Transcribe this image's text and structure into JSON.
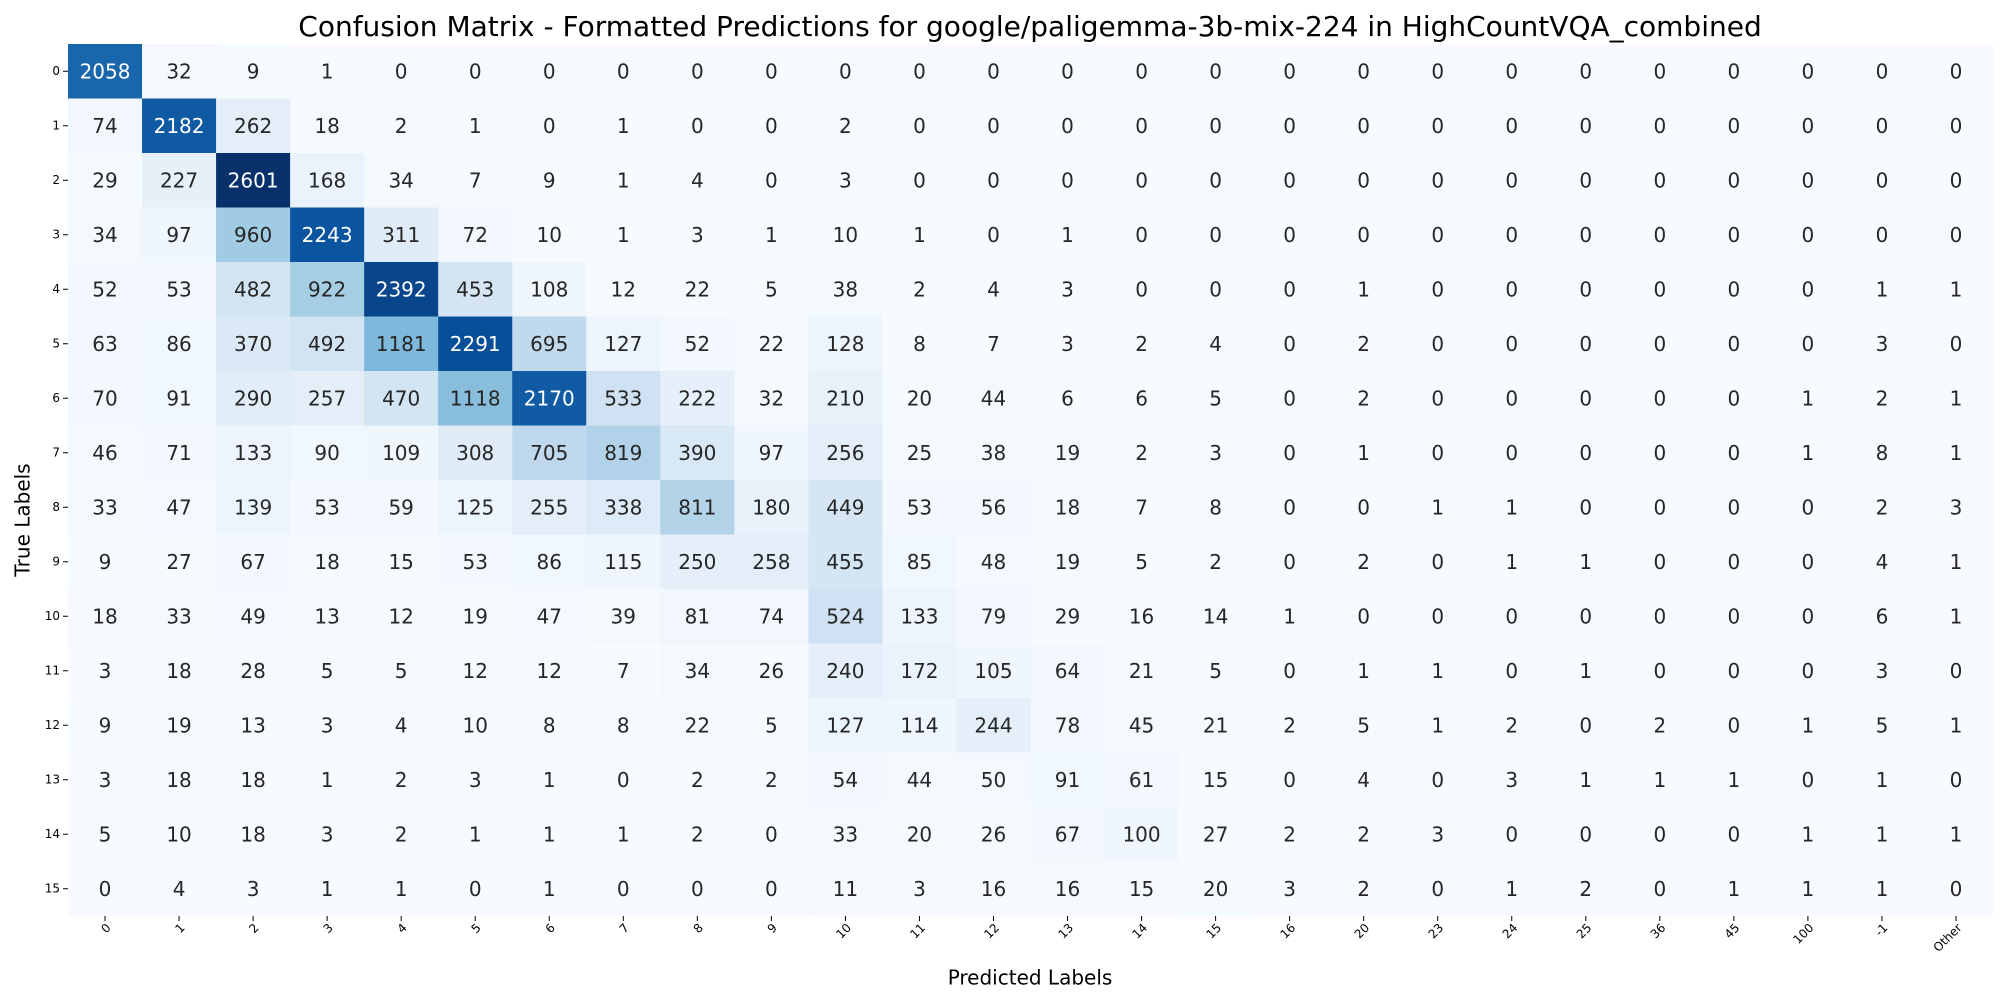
{
  "chart_data": {
    "type": "heatmap",
    "title": "Confusion Matrix - Formatted Predictions for google/paligemma-3b-mix-224 in HighCountVQA_combined",
    "xlabel": "Predicted Labels",
    "ylabel": "True Labels",
    "colormap": "Blues",
    "color_min": 0,
    "color_max": 2601,
    "colorbar": false,
    "x_categories": [
      "0",
      "1",
      "2",
      "3",
      "4",
      "5",
      "6",
      "7",
      "8",
      "9",
      "10",
      "11",
      "12",
      "13",
      "14",
      "15",
      "16",
      "20",
      "23",
      "24",
      "25",
      "36",
      "45",
      "100",
      "-1",
      "Other"
    ],
    "y_categories": [
      "0",
      "1",
      "2",
      "3",
      "4",
      "5",
      "6",
      "7",
      "8",
      "9",
      "10",
      "11",
      "12",
      "13",
      "14",
      "15"
    ],
    "values": [
      [
        2058,
        32,
        9,
        1,
        0,
        0,
        0,
        0,
        0,
        0,
        0,
        0,
        0,
        0,
        0,
        0,
        0,
        0,
        0,
        0,
        0,
        0,
        0,
        0,
        0,
        0
      ],
      [
        74,
        2182,
        262,
        18,
        2,
        1,
        0,
        1,
        0,
        0,
        2,
        0,
        0,
        0,
        0,
        0,
        0,
        0,
        0,
        0,
        0,
        0,
        0,
        0,
        0,
        0
      ],
      [
        29,
        227,
        2601,
        168,
        34,
        7,
        9,
        1,
        4,
        0,
        3,
        0,
        0,
        0,
        0,
        0,
        0,
        0,
        0,
        0,
        0,
        0,
        0,
        0,
        0,
        0
      ],
      [
        34,
        97,
        960,
        2243,
        311,
        72,
        10,
        1,
        3,
        1,
        10,
        1,
        0,
        1,
        0,
        0,
        0,
        0,
        0,
        0,
        0,
        0,
        0,
        0,
        0,
        0
      ],
      [
        52,
        53,
        482,
        922,
        2392,
        453,
        108,
        12,
        22,
        5,
        38,
        2,
        4,
        3,
        0,
        0,
        0,
        1,
        0,
        0,
        0,
        0,
        0,
        0,
        1,
        1
      ],
      [
        63,
        86,
        370,
        492,
        1181,
        2291,
        695,
        127,
        52,
        22,
        128,
        8,
        7,
        3,
        2,
        4,
        0,
        2,
        0,
        0,
        0,
        0,
        0,
        0,
        3,
        0
      ],
      [
        70,
        91,
        290,
        257,
        470,
        1118,
        2170,
        533,
        222,
        32,
        210,
        20,
        44,
        6,
        6,
        5,
        0,
        2,
        0,
        0,
        0,
        0,
        0,
        1,
        2,
        1
      ],
      [
        46,
        71,
        133,
        90,
        109,
        308,
        705,
        819,
        390,
        97,
        256,
        25,
        38,
        19,
        2,
        3,
        0,
        1,
        0,
        0,
        0,
        0,
        0,
        1,
        8,
        1
      ],
      [
        33,
        47,
        139,
        53,
        59,
        125,
        255,
        338,
        811,
        180,
        449,
        53,
        56,
        18,
        7,
        8,
        0,
        0,
        1,
        1,
        0,
        0,
        0,
        0,
        2,
        3
      ],
      [
        9,
        27,
        67,
        18,
        15,
        53,
        86,
        115,
        250,
        258,
        455,
        85,
        48,
        19,
        5,
        2,
        0,
        2,
        0,
        1,
        1,
        0,
        0,
        0,
        4,
        1
      ],
      [
        18,
        33,
        49,
        13,
        12,
        19,
        47,
        39,
        81,
        74,
        524,
        133,
        79,
        29,
        16,
        14,
        1,
        0,
        0,
        0,
        0,
        0,
        0,
        0,
        6,
        1
      ],
      [
        3,
        18,
        28,
        5,
        5,
        12,
        12,
        7,
        34,
        26,
        240,
        172,
        105,
        64,
        21,
        5,
        0,
        1,
        1,
        0,
        1,
        0,
        0,
        0,
        3,
        0
      ],
      [
        9,
        19,
        13,
        3,
        4,
        10,
        8,
        8,
        22,
        5,
        127,
        114,
        244,
        78,
        45,
        21,
        2,
        5,
        1,
        2,
        0,
        2,
        0,
        1,
        5,
        1
      ],
      [
        3,
        18,
        18,
        1,
        2,
        3,
        1,
        0,
        2,
        2,
        54,
        44,
        50,
        91,
        61,
        15,
        0,
        4,
        0,
        3,
        1,
        1,
        1,
        0,
        1,
        0
      ],
      [
        5,
        10,
        18,
        3,
        2,
        1,
        1,
        1,
        2,
        0,
        33,
        20,
        26,
        67,
        100,
        27,
        2,
        2,
        3,
        0,
        0,
        0,
        0,
        1,
        1,
        1
      ],
      [
        0,
        4,
        3,
        1,
        1,
        0,
        1,
        0,
        0,
        0,
        11,
        3,
        16,
        16,
        15,
        20,
        3,
        2,
        0,
        1,
        2,
        0,
        1,
        1,
        1,
        0
      ]
    ]
  }
}
